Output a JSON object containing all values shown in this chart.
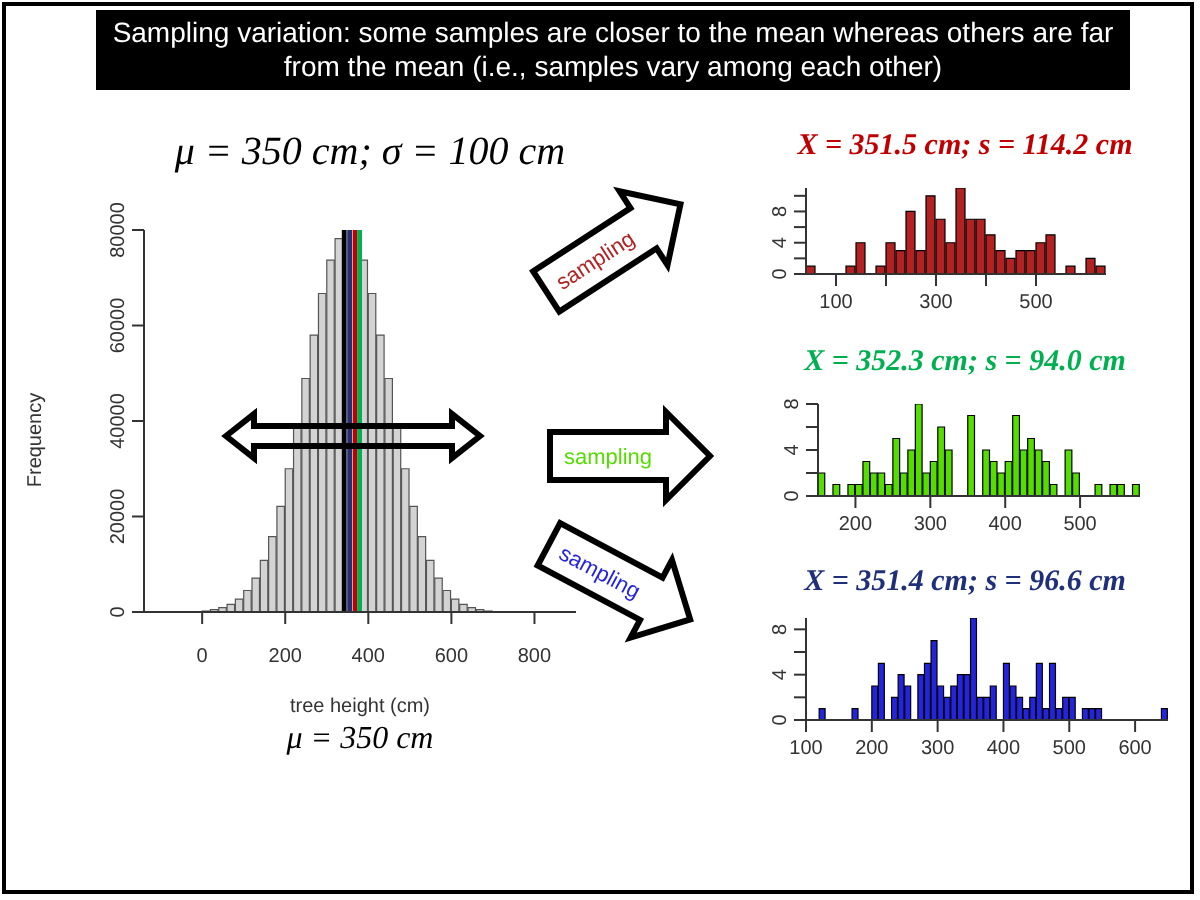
{
  "chart_data": [
    {
      "type": "histogram",
      "title": "Sampling variation: some samples are closer to the mean whereas others are far from the mean (i.e., samples vary among each other)",
      "subtitle": "μ = 350 cm; σ = 100 cm",
      "xlabel": "tree height (cm)",
      "ylabel": "Frequency",
      "color": "#d3d3d3",
      "bins": [
        -140,
        -120,
        -100,
        -80,
        -60,
        -40,
        -20,
        0,
        20,
        40,
        60,
        80,
        100,
        120,
        140,
        160,
        180,
        200,
        220,
        240,
        260,
        280,
        300,
        320,
        340,
        360,
        380,
        400,
        420,
        440,
        460,
        480,
        500,
        520,
        540,
        560,
        580,
        600,
        620,
        640,
        660,
        680,
        700,
        720,
        740,
        760,
        780,
        800,
        820,
        840,
        860,
        880,
        900
      ],
      "values": [
        0,
        0,
        0,
        0,
        0,
        0,
        0,
        200,
        500,
        900,
        1600,
        2700,
        4500,
        7100,
        10800,
        15800,
        22100,
        30000,
        38900,
        48900,
        58000,
        66700,
        73700,
        78200,
        null,
        null,
        73700,
        66700,
        58000,
        48900,
        38900,
        30000,
        22100,
        15800,
        10800,
        7100,
        4500,
        2700,
        1600,
        900,
        500,
        200,
        0,
        0,
        0,
        0,
        0,
        0,
        0,
        0,
        0,
        0
      ],
      "xlim": [
        -140,
        900
      ],
      "xticks": [
        0,
        200,
        400,
        600,
        800
      ],
      "ylim": [
        0,
        80000
      ],
      "yticks": [
        0,
        20000,
        40000,
        60000,
        80000
      ],
      "ref_lines": [
        {
          "axis": "x",
          "value": 342,
          "color": "#000000"
        },
        {
          "axis": "x",
          "value": 355,
          "color": "#1f2f7a"
        },
        {
          "axis": "x",
          "value": 368,
          "color": "#c00000"
        },
        {
          "axis": "x",
          "value": 379,
          "color": "#00b050"
        }
      ],
      "annotations": [
        "sampling",
        "sampling",
        "sampling",
        "μ = 350 cm"
      ]
    },
    {
      "type": "histogram",
      "title": "X = 351.5 cm; s = 114.2 cm",
      "color": "#b22222",
      "bins": [
        40,
        60,
        80,
        100,
        120,
        140,
        160,
        180,
        200,
        220,
        240,
        260,
        280,
        300,
        320,
        340,
        360,
        380,
        400,
        420,
        440,
        460,
        480,
        500,
        520,
        540,
        560,
        580,
        600,
        620,
        640
      ],
      "values": [
        1,
        0,
        0,
        0,
        1,
        4,
        0,
        1,
        4,
        3,
        8,
        3,
        10,
        7,
        4,
        11,
        7,
        7,
        5,
        3,
        2,
        3,
        3,
        4,
        5,
        0,
        1,
        0,
        2,
        1
      ],
      "xlim": [
        40,
        640
      ],
      "xticks": [
        100,
        {
          "value": 200,
          "label": null
        },
        300,
        {
          "value": 400,
          "label": null
        },
        500
      ],
      "ylim": [
        0,
        11
      ],
      "yticks": [
        0,
        {
          "value": 2,
          "label": null
        },
        4,
        {
          "value": 6,
          "label": null
        },
        8,
        {
          "value": 10,
          "label": null
        }
      ]
    },
    {
      "type": "histogram",
      "title": "X = 352.3 cm; s = 94.0 cm",
      "color": "#55dd00",
      "bins": [
        150,
        160,
        170,
        180,
        190,
        200,
        210,
        220,
        230,
        240,
        250,
        260,
        270,
        280,
        290,
        300,
        310,
        320,
        330,
        340,
        350,
        360,
        370,
        380,
        390,
        400,
        410,
        420,
        430,
        440,
        450,
        460,
        470,
        480,
        490,
        500,
        510,
        520,
        530,
        540,
        550,
        560,
        570,
        580
      ],
      "values": [
        2,
        0,
        1,
        0,
        1,
        1,
        3,
        2,
        2,
        1,
        5,
        2,
        4,
        8,
        2,
        3,
        6,
        4,
        0,
        0,
        7,
        0,
        4,
        3,
        2,
        3,
        7,
        4,
        5,
        4,
        3,
        1,
        0,
        4,
        2,
        0,
        0,
        1,
        0,
        1,
        1,
        0,
        1
      ],
      "xlim": [
        150,
        580
      ],
      "xticks": [
        200,
        300,
        400,
        500
      ],
      "ylim": [
        0,
        8
      ],
      "yticks": [
        0,
        {
          "value": 2,
          "label": null
        },
        4,
        {
          "value": 6,
          "label": null
        },
        8
      ]
    },
    {
      "type": "histogram",
      "title": "X = 351.4 cm; s = 96.6 cm",
      "color": "#2424e0",
      "bins": [
        100,
        110,
        120,
        130,
        140,
        150,
        160,
        170,
        180,
        190,
        200,
        210,
        220,
        230,
        240,
        250,
        260,
        270,
        280,
        290,
        300,
        310,
        320,
        330,
        340,
        350,
        360,
        370,
        380,
        390,
        400,
        410,
        420,
        430,
        440,
        450,
        460,
        470,
        480,
        490,
        500,
        510,
        520,
        530,
        540,
        550,
        560,
        570,
        580,
        590,
        600,
        610,
        620,
        630,
        640,
        650
      ],
      "values": [
        0,
        0,
        1,
        0,
        0,
        0,
        0,
        1,
        0,
        0,
        3,
        5,
        0,
        2,
        4,
        3,
        0,
        4,
        5,
        7,
        3,
        2,
        3,
        4,
        4,
        9,
        2,
        2,
        3,
        0,
        5,
        3,
        2,
        1,
        2,
        5,
        1,
        5,
        1,
        2,
        2,
        0,
        1,
        1,
        1,
        0,
        0,
        0,
        0,
        0,
        0,
        0,
        0,
        0,
        1
      ],
      "xlim": [
        100,
        650
      ],
      "xticks": [
        100,
        200,
        300,
        400,
        500,
        600
      ],
      "ylim": [
        0,
        9
      ],
      "yticks": [
        0,
        {
          "value": 2,
          "label": null
        },
        4,
        {
          "value": 6,
          "label": null
        },
        8
      ]
    }
  ]
}
